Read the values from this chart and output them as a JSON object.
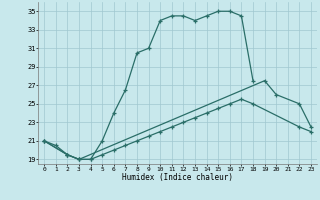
{
  "xlabel": "Humidex (Indice chaleur)",
  "bg_color": "#c8e8ec",
  "grid_color": "#a0c8d0",
  "line_color": "#2a6e68",
  "xlim": [
    -0.5,
    23.5
  ],
  "ylim": [
    18.5,
    36.0
  ],
  "yticks": [
    19,
    21,
    23,
    25,
    27,
    29,
    31,
    33,
    35
  ],
  "xticks": [
    0,
    1,
    2,
    3,
    4,
    5,
    6,
    7,
    8,
    9,
    10,
    11,
    12,
    13,
    14,
    15,
    16,
    17,
    18,
    19,
    20,
    21,
    22,
    23
  ],
  "line1_x": [
    0,
    1,
    2,
    3,
    4,
    5,
    6,
    7,
    8,
    9,
    10,
    11,
    12,
    13,
    14,
    15,
    16,
    17,
    18
  ],
  "line1_y": [
    21.0,
    20.5,
    19.5,
    19.0,
    19.0,
    21.0,
    24.0,
    26.5,
    30.5,
    31.0,
    34.0,
    34.5,
    34.5,
    34.0,
    34.5,
    35.0,
    35.0,
    34.5,
    27.5
  ],
  "line2_x": [
    0,
    2,
    3,
    19,
    20,
    22,
    23
  ],
  "line2_y": [
    21.0,
    19.5,
    19.0,
    27.5,
    26.0,
    25.0,
    22.5
  ],
  "line3_x": [
    0,
    2,
    3,
    4,
    5,
    6,
    7,
    8,
    9,
    10,
    11,
    12,
    13,
    14,
    15,
    16,
    17,
    18,
    22,
    23
  ],
  "line3_y": [
    21.0,
    19.5,
    19.0,
    19.0,
    19.5,
    20.0,
    20.5,
    21.0,
    21.5,
    22.0,
    22.5,
    23.0,
    23.5,
    24.0,
    24.5,
    25.0,
    25.5,
    25.0,
    22.5,
    22.0
  ]
}
